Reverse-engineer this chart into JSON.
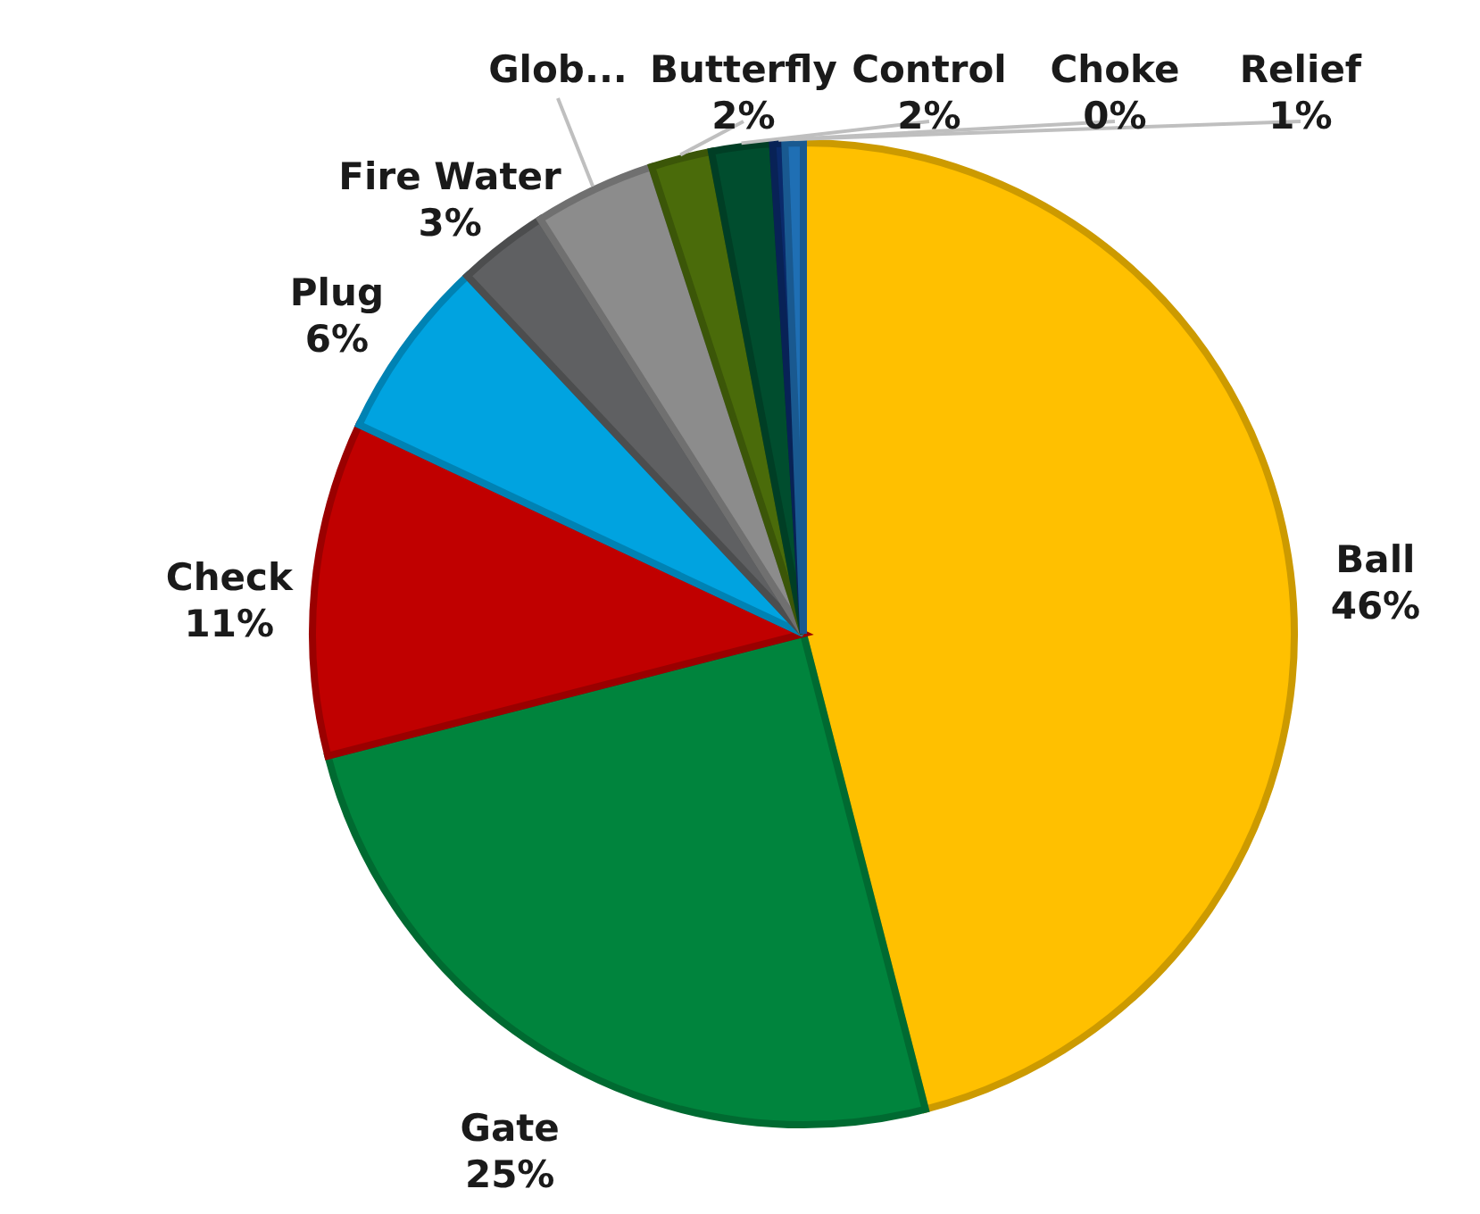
{
  "chart_data": {
    "type": "pie",
    "categories": [
      "Ball",
      "Gate",
      "Check",
      "Plug",
      "Fire Water",
      "Glob...",
      "Butterfly",
      "Control",
      "Choke",
      "Relief"
    ],
    "values": [
      46,
      25,
      11,
      6,
      3,
      4,
      2,
      2,
      0.4,
      0.6
    ],
    "value_labels": [
      "46%",
      "25%",
      "11%",
      "6%",
      "3%",
      null,
      "2%",
      "2%",
      "0%",
      "1%"
    ],
    "colors": [
      "#ffc000",
      "#00843d",
      "#c00000",
      "#00a3e0",
      "#5f6062",
      "#8c8c8c",
      "#4a6b0a",
      "#004d2e",
      "#0a2a6b",
      "#1f6fb4"
    ]
  }
}
